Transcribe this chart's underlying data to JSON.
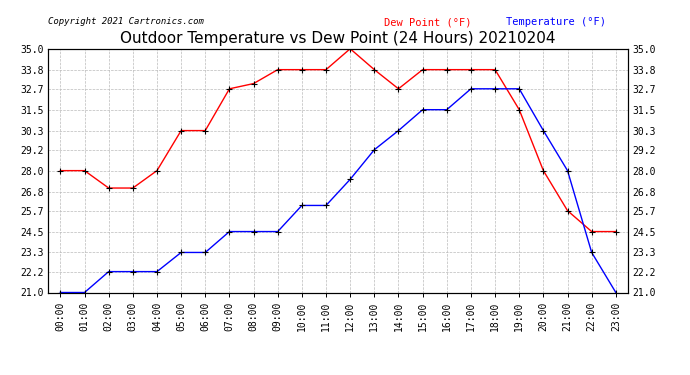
{
  "title": "Outdoor Temperature vs Dew Point (24 Hours) 20210204",
  "copyright": "Copyright 2021 Cartronics.com",
  "legend_dew": "Dew Point (°F)",
  "legend_temp": "Temperature (°F)",
  "hours": [
    "00:00",
    "01:00",
    "02:00",
    "03:00",
    "04:00",
    "05:00",
    "06:00",
    "07:00",
    "08:00",
    "09:00",
    "10:00",
    "11:00",
    "12:00",
    "13:00",
    "14:00",
    "15:00",
    "16:00",
    "17:00",
    "18:00",
    "19:00",
    "20:00",
    "21:00",
    "22:00",
    "23:00"
  ],
  "dew_point": [
    28.0,
    28.0,
    27.0,
    27.0,
    28.0,
    30.3,
    30.3,
    32.7,
    33.0,
    33.8,
    33.8,
    33.8,
    35.0,
    33.8,
    32.7,
    33.8,
    33.8,
    33.8,
    33.8,
    31.5,
    28.0,
    25.7,
    24.5,
    24.5
  ],
  "temperature": [
    21.0,
    21.0,
    22.2,
    22.2,
    22.2,
    23.3,
    23.3,
    24.5,
    24.5,
    24.5,
    26.0,
    26.0,
    27.5,
    29.2,
    30.3,
    31.5,
    31.5,
    32.7,
    32.7,
    32.7,
    30.3,
    28.0,
    23.3,
    21.0
  ],
  "ylim_min": 21.0,
  "ylim_max": 35.0,
  "yticks": [
    21.0,
    22.2,
    23.3,
    24.5,
    25.7,
    26.8,
    28.0,
    29.2,
    30.3,
    31.5,
    32.7,
    33.8,
    35.0
  ],
  "dew_color": "red",
  "temp_color": "blue",
  "bg_color": "#ffffff",
  "grid_color": "#bbbbbb",
  "title_fontsize": 11,
  "tick_fontsize": 7,
  "marker": "+"
}
